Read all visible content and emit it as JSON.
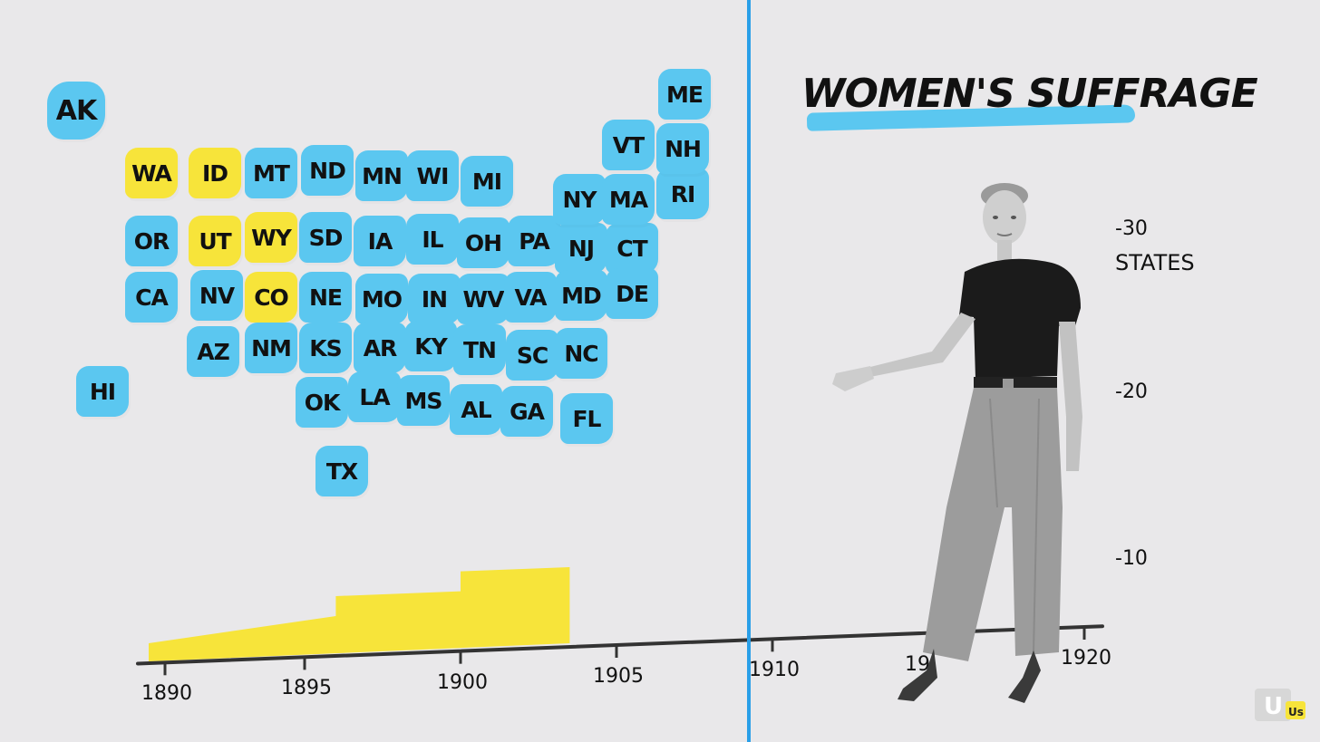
{
  "title": "WOMEN'S SUFFRAGE",
  "colors": {
    "background": "#e9e8ea",
    "not_granted": "#5bc7f0",
    "granted": "#f7e43a",
    "divider": "#2a9fe8"
  },
  "states": [
    {
      "code": "AK",
      "status": "not_granted"
    },
    {
      "code": "HI",
      "status": "not_granted"
    },
    {
      "code": "WA",
      "status": "granted"
    },
    {
      "code": "ID",
      "status": "granted"
    },
    {
      "code": "MT",
      "status": "not_granted"
    },
    {
      "code": "ND",
      "status": "not_granted"
    },
    {
      "code": "MN",
      "status": "not_granted"
    },
    {
      "code": "WI",
      "status": "not_granted"
    },
    {
      "code": "MI",
      "status": "not_granted"
    },
    {
      "code": "OR",
      "status": "not_granted"
    },
    {
      "code": "UT",
      "status": "granted"
    },
    {
      "code": "WY",
      "status": "granted"
    },
    {
      "code": "SD",
      "status": "not_granted"
    },
    {
      "code": "IA",
      "status": "not_granted"
    },
    {
      "code": "IL",
      "status": "not_granted"
    },
    {
      "code": "OH",
      "status": "not_granted"
    },
    {
      "code": "PA",
      "status": "not_granted"
    },
    {
      "code": "NJ",
      "status": "not_granted"
    },
    {
      "code": "CT",
      "status": "not_granted"
    },
    {
      "code": "CA",
      "status": "not_granted"
    },
    {
      "code": "NV",
      "status": "not_granted"
    },
    {
      "code": "CO",
      "status": "granted"
    },
    {
      "code": "NE",
      "status": "not_granted"
    },
    {
      "code": "MO",
      "status": "not_granted"
    },
    {
      "code": "IN",
      "status": "not_granted"
    },
    {
      "code": "WV",
      "status": "not_granted"
    },
    {
      "code": "VA",
      "status": "not_granted"
    },
    {
      "code": "MD",
      "status": "not_granted"
    },
    {
      "code": "DE",
      "status": "not_granted"
    },
    {
      "code": "AZ",
      "status": "not_granted"
    },
    {
      "code": "NM",
      "status": "not_granted"
    },
    {
      "code": "KS",
      "status": "not_granted"
    },
    {
      "code": "AR",
      "status": "not_granted"
    },
    {
      "code": "KY",
      "status": "not_granted"
    },
    {
      "code": "TN",
      "status": "not_granted"
    },
    {
      "code": "SC",
      "status": "not_granted"
    },
    {
      "code": "NC",
      "status": "not_granted"
    },
    {
      "code": "OK",
      "status": "not_granted"
    },
    {
      "code": "LA",
      "status": "not_granted"
    },
    {
      "code": "MS",
      "status": "not_granted"
    },
    {
      "code": "AL",
      "status": "not_granted"
    },
    {
      "code": "GA",
      "status": "not_granted"
    },
    {
      "code": "FL",
      "status": "not_granted"
    },
    {
      "code": "TX",
      "status": "not_granted"
    },
    {
      "code": "NY",
      "status": "not_granted"
    },
    {
      "code": "VT",
      "status": "not_granted"
    },
    {
      "code": "MA",
      "status": "not_granted"
    },
    {
      "code": "RI",
      "status": "not_granted"
    },
    {
      "code": "NH",
      "status": "not_granted"
    },
    {
      "code": "ME",
      "status": "not_granted"
    }
  ],
  "chart_data": {
    "type": "area",
    "title": "WOMEN'S SUFFRAGE",
    "ylabel": "STATES",
    "x_ticks": [
      "1890",
      "1895",
      "1900",
      "1905",
      "1910",
      "19",
      "1920"
    ],
    "y_ticks": [
      "-10",
      "-20",
      "-30"
    ],
    "xlim": [
      1890,
      1920
    ],
    "ylim": [
      0,
      30
    ],
    "series": [
      {
        "x": [
          1890,
          1896,
          1896,
          1900,
          1900,
          1903.5
        ],
        "y": [
          1,
          2,
          3,
          3,
          4,
          4
        ]
      }
    ],
    "line_position_year": 1908.5
  },
  "logo": {
    "text": "Us",
    "mark": "U"
  }
}
